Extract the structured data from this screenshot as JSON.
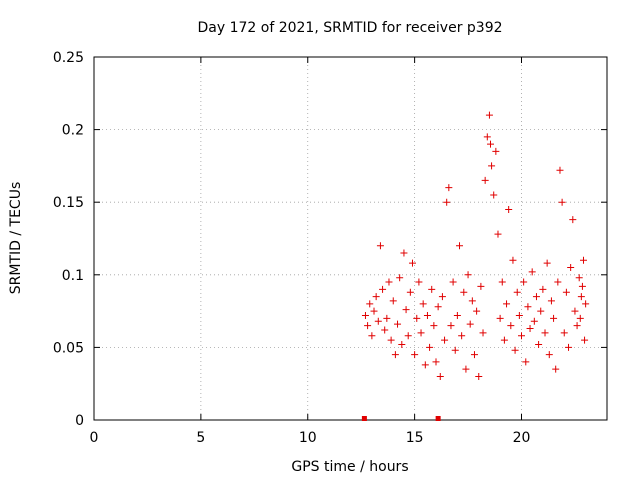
{
  "chart_data": {
    "type": "scatter",
    "title": "Day 172 of 2021, SRMTID for receiver p392",
    "xlabel": "GPS time / hours",
    "ylabel": "SRMTID / TECUs",
    "xlim": [
      0,
      24
    ],
    "ylim": [
      0,
      0.25
    ],
    "xticks": [
      0,
      5,
      10,
      15,
      20
    ],
    "xtick_labels": [
      "0",
      "5",
      "10",
      "15",
      "20"
    ],
    "yticks": [
      0,
      0.05,
      0.1,
      0.15,
      0.2,
      0.25
    ],
    "ytick_labels": [
      "0",
      "0.05",
      "0.1",
      "0.15",
      "0.2",
      "0.25"
    ],
    "grid": true,
    "marker": "+",
    "color": "#e00000",
    "series": [
      {
        "name": "SRMTID",
        "points": [
          [
            12.7,
            0.072
          ],
          [
            12.8,
            0.065
          ],
          [
            12.9,
            0.08
          ],
          [
            13.0,
            0.058
          ],
          [
            13.1,
            0.075
          ],
          [
            13.2,
            0.085
          ],
          [
            13.3,
            0.068
          ],
          [
            13.4,
            0.12
          ],
          [
            13.5,
            0.09
          ],
          [
            13.6,
            0.062
          ],
          [
            13.7,
            0.07
          ],
          [
            13.8,
            0.095
          ],
          [
            13.9,
            0.055
          ],
          [
            14.0,
            0.082
          ],
          [
            14.1,
            0.045
          ],
          [
            14.2,
            0.066
          ],
          [
            14.3,
            0.098
          ],
          [
            14.4,
            0.052
          ],
          [
            14.5,
            0.115
          ],
          [
            14.6,
            0.076
          ],
          [
            14.7,
            0.058
          ],
          [
            14.8,
            0.088
          ],
          [
            14.9,
            0.108
          ],
          [
            15.0,
            0.045
          ],
          [
            15.1,
            0.07
          ],
          [
            15.2,
            0.095
          ],
          [
            15.3,
            0.06
          ],
          [
            15.4,
            0.08
          ],
          [
            15.5,
            0.038
          ],
          [
            15.6,
            0.072
          ],
          [
            15.7,
            0.05
          ],
          [
            15.8,
            0.09
          ],
          [
            15.9,
            0.065
          ],
          [
            16.0,
            0.04
          ],
          [
            16.1,
            0.078
          ],
          [
            16.2,
            0.03
          ],
          [
            16.3,
            0.085
          ],
          [
            16.4,
            0.055
          ],
          [
            16.5,
            0.15
          ],
          [
            16.6,
            0.16
          ],
          [
            16.7,
            0.065
          ],
          [
            16.8,
            0.095
          ],
          [
            16.9,
            0.048
          ],
          [
            17.0,
            0.072
          ],
          [
            17.1,
            0.12
          ],
          [
            17.2,
            0.058
          ],
          [
            17.3,
            0.088
          ],
          [
            17.4,
            0.035
          ],
          [
            17.5,
            0.1
          ],
          [
            17.6,
            0.066
          ],
          [
            17.7,
            0.082
          ],
          [
            17.8,
            0.045
          ],
          [
            17.9,
            0.075
          ],
          [
            18.0,
            0.03
          ],
          [
            18.1,
            0.092
          ],
          [
            18.2,
            0.06
          ],
          [
            18.3,
            0.165
          ],
          [
            18.4,
            0.195
          ],
          [
            18.5,
            0.21
          ],
          [
            18.55,
            0.19
          ],
          [
            18.6,
            0.175
          ],
          [
            18.7,
            0.155
          ],
          [
            18.8,
            0.185
          ],
          [
            18.9,
            0.128
          ],
          [
            19.0,
            0.07
          ],
          [
            19.1,
            0.095
          ],
          [
            19.2,
            0.055
          ],
          [
            19.3,
            0.08
          ],
          [
            19.4,
            0.145
          ],
          [
            19.5,
            0.065
          ],
          [
            19.6,
            0.11
          ],
          [
            19.7,
            0.048
          ],
          [
            19.8,
            0.088
          ],
          [
            19.9,
            0.072
          ],
          [
            20.0,
            0.058
          ],
          [
            20.1,
            0.095
          ],
          [
            20.2,
            0.04
          ],
          [
            20.3,
            0.078
          ],
          [
            20.4,
            0.063
          ],
          [
            20.5,
            0.102
          ],
          [
            20.6,
            0.068
          ],
          [
            20.7,
            0.085
          ],
          [
            20.8,
            0.052
          ],
          [
            20.9,
            0.075
          ],
          [
            21.0,
            0.09
          ],
          [
            21.1,
            0.06
          ],
          [
            21.2,
            0.108
          ],
          [
            21.3,
            0.045
          ],
          [
            21.4,
            0.082
          ],
          [
            21.5,
            0.07
          ],
          [
            21.6,
            0.035
          ],
          [
            21.7,
            0.095
          ],
          [
            21.8,
            0.172
          ],
          [
            21.9,
            0.15
          ],
          [
            22.0,
            0.06
          ],
          [
            22.1,
            0.088
          ],
          [
            22.2,
            0.05
          ],
          [
            22.3,
            0.105
          ],
          [
            22.4,
            0.138
          ],
          [
            22.5,
            0.075
          ],
          [
            22.6,
            0.065
          ],
          [
            22.7,
            0.098
          ],
          [
            22.8,
            0.085
          ],
          [
            22.9,
            0.11
          ],
          [
            23.0,
            0.08
          ],
          [
            22.95,
            0.055
          ],
          [
            22.85,
            0.092
          ],
          [
            22.75,
            0.07
          ]
        ]
      }
    ],
    "x_markers": [
      12.65,
      16.1
    ]
  }
}
